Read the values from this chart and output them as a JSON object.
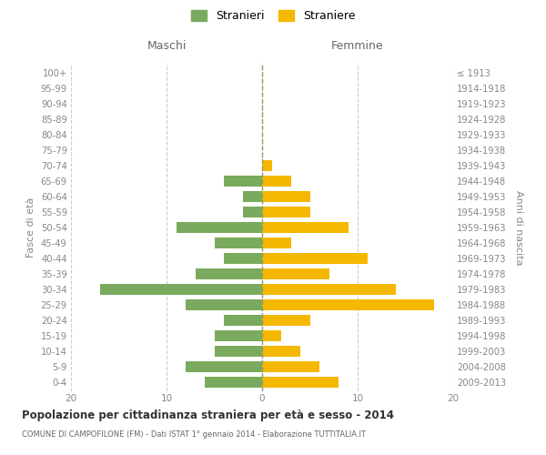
{
  "age_groups": [
    "0-4",
    "5-9",
    "10-14",
    "15-19",
    "20-24",
    "25-29",
    "30-34",
    "35-39",
    "40-44",
    "45-49",
    "50-54",
    "55-59",
    "60-64",
    "65-69",
    "70-74",
    "75-79",
    "80-84",
    "85-89",
    "90-94",
    "95-99",
    "100+"
  ],
  "birth_years": [
    "2009-2013",
    "2004-2008",
    "1999-2003",
    "1994-1998",
    "1989-1993",
    "1984-1988",
    "1979-1983",
    "1974-1978",
    "1969-1973",
    "1964-1968",
    "1959-1963",
    "1954-1958",
    "1949-1953",
    "1944-1948",
    "1939-1943",
    "1934-1938",
    "1929-1933",
    "1924-1928",
    "1919-1923",
    "1914-1918",
    "≤ 1913"
  ],
  "maschi": [
    6,
    8,
    5,
    5,
    4,
    8,
    17,
    7,
    4,
    5,
    9,
    2,
    2,
    4,
    0,
    0,
    0,
    0,
    0,
    0,
    0
  ],
  "femmine": [
    8,
    6,
    4,
    2,
    5,
    18,
    14,
    7,
    11,
    3,
    9,
    5,
    5,
    3,
    1,
    0,
    0,
    0,
    0,
    0,
    0
  ],
  "maschi_color": "#7aaa5e",
  "femmine_color": "#f5b800",
  "title": "Popolazione per cittadinanza straniera per età e sesso - 2014",
  "subtitle": "COMUNE DI CAMPOFILONE (FM) - Dati ISTAT 1° gennaio 2014 - Elaborazione TUTTITALIA.IT",
  "xlabel_left": "Maschi",
  "xlabel_right": "Femmine",
  "ylabel_left": "Fasce di età",
  "ylabel_right": "Anni di nascita",
  "xlim": 20,
  "legend_stranieri": "Stranieri",
  "legend_straniere": "Straniere",
  "bg_color": "#ffffff",
  "grid_color": "#cccccc",
  "bar_height": 0.72,
  "label_color": "#888888",
  "header_color": "#666666"
}
